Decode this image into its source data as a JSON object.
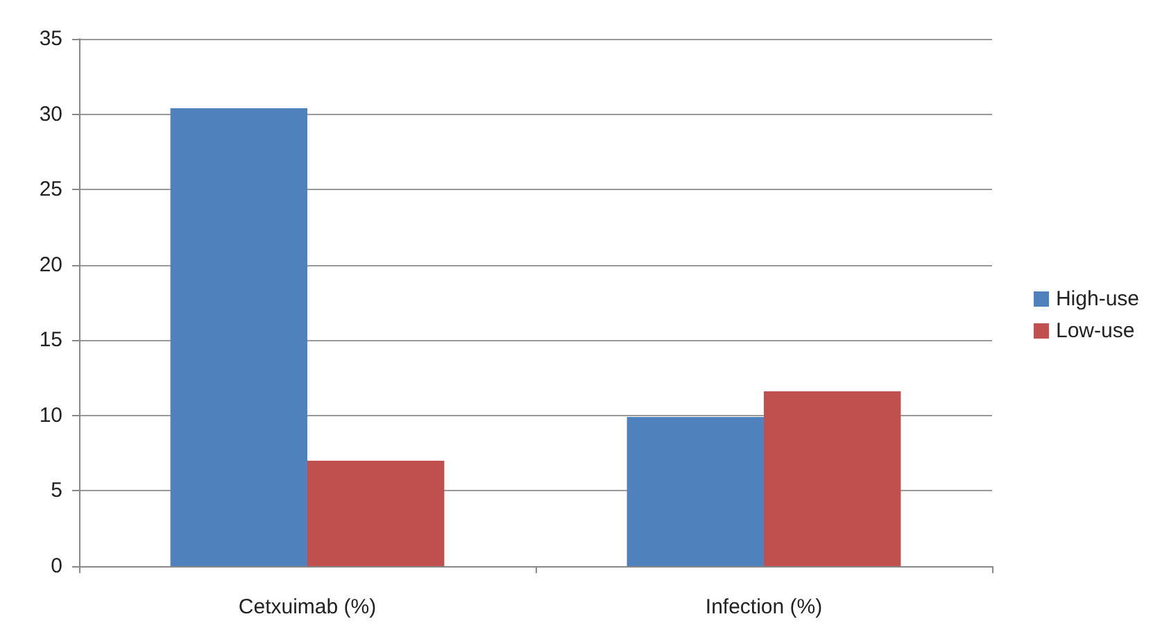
{
  "chart_data": {
    "type": "bar",
    "categories": [
      "Cetxuimab (%)",
      "Infection (%)"
    ],
    "series": [
      {
        "name": "High-use",
        "color": "#4f81bd",
        "values": [
          30.4,
          9.9
        ]
      },
      {
        "name": "Low-use",
        "color": "#c0504d",
        "values": [
          7.0,
          11.6
        ]
      }
    ],
    "ylim": [
      0,
      35
    ],
    "yticks": [
      0,
      5,
      10,
      15,
      20,
      25,
      30,
      35
    ],
    "grid": "y",
    "legend": "right"
  }
}
